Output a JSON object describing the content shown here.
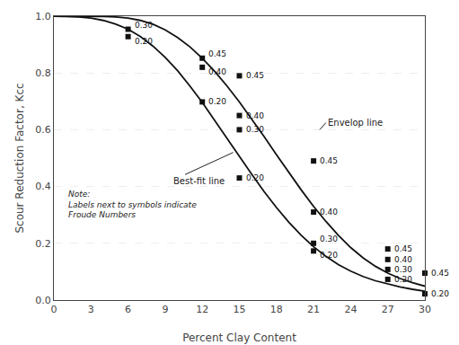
{
  "chart_data": {
    "type": "line",
    "xlabel": "Percent Clay Content",
    "ylabel": "Scour Reduction Factor, Kcc",
    "xlim": [
      0,
      30
    ],
    "ylim": [
      0,
      1.0
    ],
    "xticks": [
      0,
      3,
      6,
      9,
      12,
      15,
      18,
      21,
      24,
      27,
      30
    ],
    "yticks": [
      {
        "value": 0,
        "label": "0.0"
      },
      0.2,
      0.4,
      0.6,
      0.8,
      {
        "value": 1.0,
        "label": "1.0"
      }
    ],
    "grid": "y",
    "series": [
      {
        "type": "line",
        "line_style": "solid",
        "color": "#111111",
        "x": [
          0,
          0.5,
          1,
          2,
          3,
          4,
          5,
          6,
          7,
          8,
          9,
          10,
          11,
          12,
          13,
          14,
          15,
          16,
          17,
          18,
          19,
          20,
          21,
          22,
          23,
          24,
          25,
          26,
          27,
          28,
          29,
          30
        ],
        "values": [
          1.0,
          1.0,
          0.999,
          0.997,
          0.993,
          0.985,
          0.972,
          0.954,
          0.928,
          0.895,
          0.855,
          0.808,
          0.754,
          0.696,
          0.634,
          0.57,
          0.506,
          0.443,
          0.382,
          0.326,
          0.274,
          0.228,
          0.188,
          0.154,
          0.125,
          0.102,
          0.083,
          0.068,
          0.056,
          0.046,
          0.038,
          0.031
        ]
      },
      {
        "type": "line",
        "line_style": "solid",
        "color": "#111111",
        "x": [
          0,
          0.5,
          1,
          2,
          3,
          4,
          5,
          6,
          7,
          8,
          9,
          10,
          11,
          12,
          13,
          14,
          15,
          16,
          17,
          18,
          19,
          20,
          21,
          22,
          23,
          24,
          25,
          26,
          27,
          28,
          29,
          30
        ],
        "values": [
          1.0,
          1.0,
          1.0,
          1.0,
          1.0,
          0.999,
          0.997,
          0.993,
          0.985,
          0.972,
          0.952,
          0.925,
          0.892,
          0.852,
          0.806,
          0.754,
          0.698,
          0.638,
          0.576,
          0.512,
          0.449,
          0.388,
          0.33,
          0.277,
          0.228,
          0.185,
          0.149,
          0.119,
          0.095,
          0.076,
          0.061,
          0.049
        ]
      },
      {
        "type": "scatter",
        "marker": "square",
        "color": "#111111",
        "x": [
          6,
          6,
          12,
          12,
          12,
          15,
          15,
          15,
          15,
          21,
          21,
          21,
          21,
          27,
          27,
          27,
          27,
          30,
          30
        ],
        "values": [
          0.954,
          0.928,
          0.852,
          0.82,
          0.698,
          0.79,
          0.65,
          0.6,
          0.43,
          0.49,
          0.31,
          0.2,
          0.173,
          0.18,
          0.143,
          0.108,
          0.073,
          0.095,
          0.022
        ],
        "labels": [
          "0.30",
          "0.20",
          "0.45",
          "0.40",
          "0.20",
          "0.45",
          "0.40",
          "0.30",
          "0.20",
          "0.45",
          "0.40",
          "0.30",
          "0.20",
          "0.45",
          "0.40",
          "0.30",
          "0.20",
          "0.45",
          "0.20"
        ]
      }
    ],
    "annotations": [
      {
        "text": "Best-fit line",
        "x": 14.5,
        "y": 0.52,
        "text_x": 9.5,
        "text_y": 0.42
      },
      {
        "text": "Envelop line",
        "x": 21.5,
        "y": 0.6,
        "text_x": 22.0,
        "text_y": 0.625
      },
      {
        "text": "Note:\nLabels next to symbols indicate\nFroude Numbers",
        "x": 1.0,
        "y": 0.395
      }
    ]
  }
}
